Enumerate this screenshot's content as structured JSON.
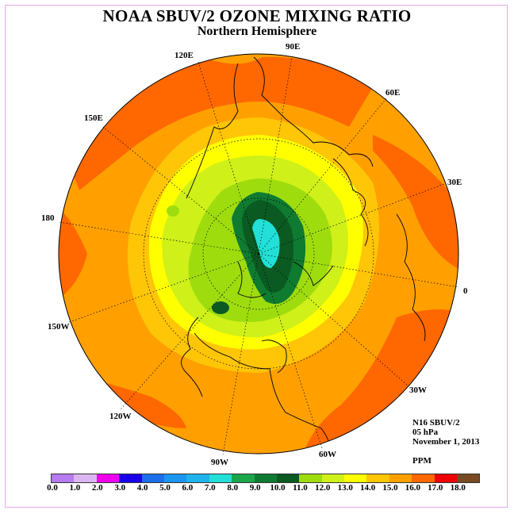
{
  "title": "NOAA SBUV/2 OZONE MIXING RATIO",
  "subtitle": "Northern Hemisphere",
  "longitude_labels": [
    "90E",
    "60E",
    "30E",
    "0",
    "30W",
    "60W",
    "90W",
    "120W",
    "150W",
    "180",
    "150E",
    "120E"
  ],
  "info": {
    "instrument": "N16 SBUV/2",
    "level": "05 hPa",
    "date": "November 1, 2013",
    "units": "PPM"
  },
  "colorbar": {
    "colors": [
      "#b57bef",
      "#dcb6f2",
      "#ee00ee",
      "#1a00e8",
      "#1c6fe8",
      "#1b96ee",
      "#1fb3ee",
      "#22e0d7",
      "#1ba64b",
      "#0f7b31",
      "#0a5a22",
      "#9fdc0e",
      "#cff019",
      "#ffff00",
      "#ffc507",
      "#ffa000",
      "#ff6800",
      "#ee0000",
      "#7a4a22"
    ],
    "tick_labels": [
      "0.0",
      "1.0",
      "2.0",
      "3.0",
      "4.0",
      "5.0",
      "6.0",
      "7.0",
      "8.0",
      "9.0",
      "10.0",
      "11.0",
      "12.0",
      "13.0",
      "14.0",
      "15.0",
      "16.0",
      "17.0",
      "18.0"
    ]
  }
}
